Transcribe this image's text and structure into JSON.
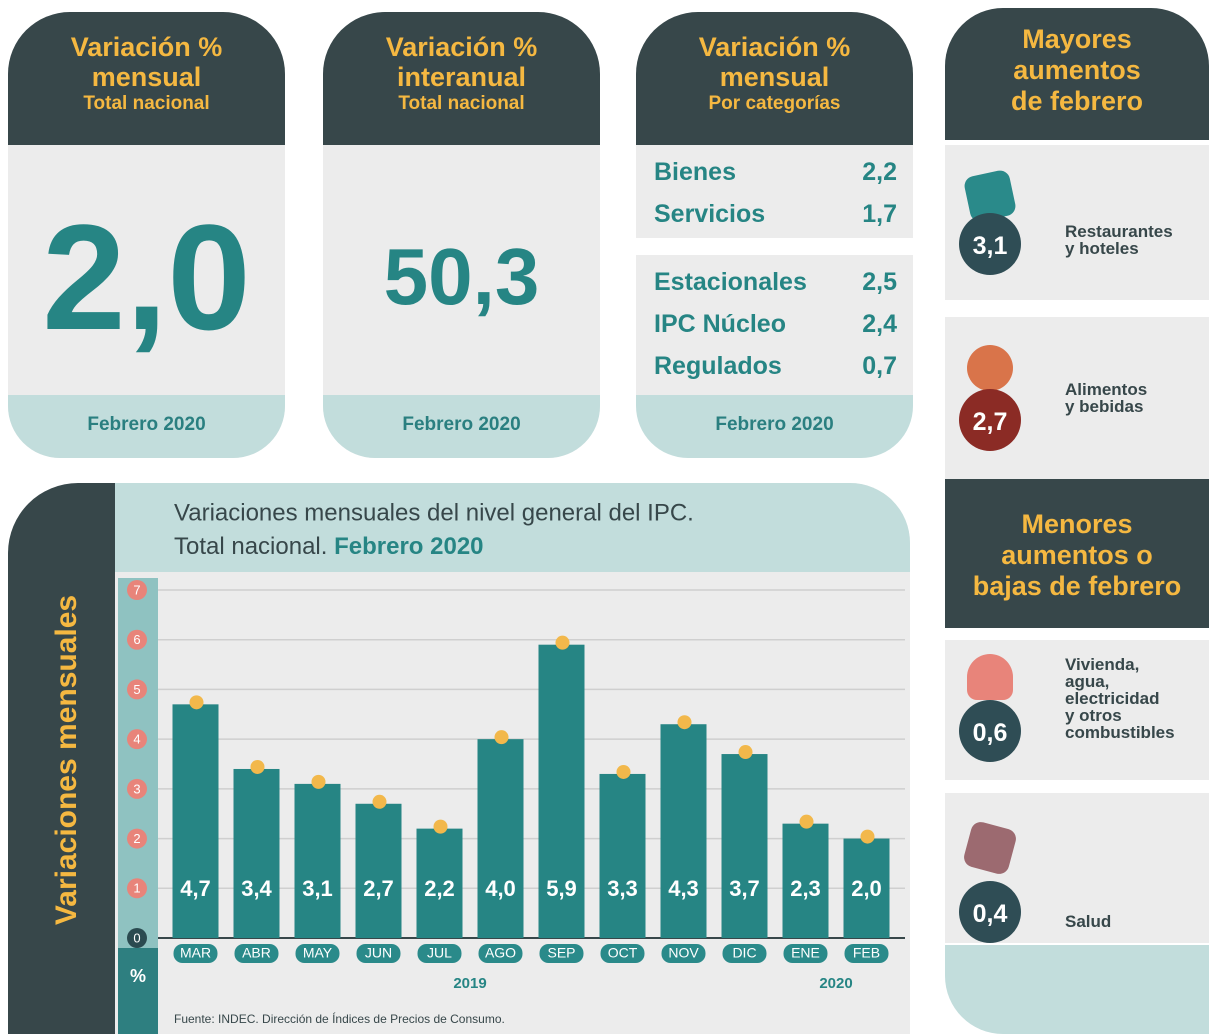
{
  "cards": [
    {
      "title": [
        "Variación %",
        "mensual"
      ],
      "subtitle": "Total nacional",
      "value": "2,0",
      "footer": "Febrero 2020"
    },
    {
      "title": [
        "Variación %",
        "interanual"
      ],
      "subtitle": "Total nacional",
      "value": "50,3",
      "footer": "Febrero 2020"
    },
    {
      "title": [
        "Variación %",
        "mensual"
      ],
      "subtitle": "Por categorías",
      "groups": [
        [
          [
            "Bienes",
            "2,2"
          ],
          [
            "Servicios",
            "1,7"
          ]
        ],
        [
          [
            "Estacionales",
            "2,5"
          ],
          [
            "IPC Núcleo",
            "2,4"
          ],
          [
            "Regulados",
            "0,7"
          ]
        ]
      ],
      "footer": "Febrero 2020"
    }
  ],
  "side": {
    "top_title": [
      "Mayores",
      "aumentos",
      "de febrero"
    ],
    "top_items": [
      {
        "value": "3,1",
        "label": [
          "Restaurantes",
          "y hoteles"
        ]
      },
      {
        "value": "2,7",
        "label": [
          "Alimentos",
          "y bebidas"
        ]
      }
    ],
    "bottom_title": [
      "Menores",
      "aumentos o",
      "bajas de febrero"
    ],
    "bottom_items": [
      {
        "value": "0,6",
        "label": [
          "Vivienda,",
          "agua,",
          "electricidad",
          "y otros",
          "combustibles"
        ]
      },
      {
        "value": "0,4",
        "label": [
          "Salud"
        ]
      }
    ]
  },
  "chart_data": {
    "type": "bar",
    "title": [
      "Variaciones mensuales del nivel general del IPC.",
      "Total nacional."
    ],
    "title_emphasis": "Febrero 2020",
    "y_label": "Variaciones mensuales",
    "y_unit": "%",
    "categories": [
      "MAR",
      "ABR",
      "MAY",
      "JUN",
      "JUL",
      "AGO",
      "SEP",
      "OCT",
      "NOV",
      "DIC",
      "ENE",
      "FEB"
    ],
    "year_labels": [
      "2019",
      "2020"
    ],
    "values": [
      4.7,
      3.4,
      3.1,
      2.7,
      2.2,
      4.0,
      5.9,
      3.3,
      4.3,
      3.7,
      2.3,
      2.0
    ],
    "value_labels": [
      "4,7",
      "3,4",
      "3,1",
      "2,7",
      "2,2",
      "4,0",
      "5,9",
      "3,3",
      "4,3",
      "3,7",
      "2,3",
      "2,0"
    ],
    "color": "#268584",
    "ylim": [
      0,
      7
    ],
    "yticks": [
      0,
      1,
      2,
      3,
      4,
      5,
      6,
      7
    ],
    "grid": true,
    "source": "Fuente: INDEC. Dirección de Índices de Precios de Consumo."
  }
}
